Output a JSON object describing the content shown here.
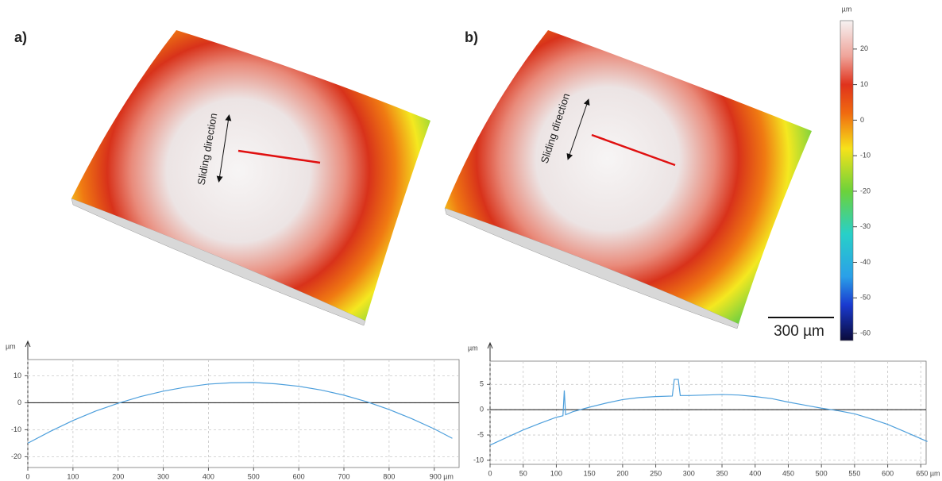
{
  "panels": [
    {
      "label": "a)",
      "annotation": "Sliding direction"
    },
    {
      "label": "b)",
      "annotation": "Sliding direction"
    }
  ],
  "colorbar": {
    "unit": "µm",
    "lim": [
      -62,
      28
    ],
    "ticks": [
      20,
      10,
      0,
      -10,
      -20,
      -30,
      -40,
      -50,
      -60
    ],
    "stops": [
      {
        "value": 28,
        "color": "#f6f2f2"
      },
      {
        "value": 18,
        "color": "#efa49a"
      },
      {
        "value": 10,
        "color": "#e0321c"
      },
      {
        "value": 2,
        "color": "#f06a10"
      },
      {
        "value": -8,
        "color": "#f6e21a"
      },
      {
        "value": -20,
        "color": "#6cd23a"
      },
      {
        "value": -32,
        "color": "#28d0c8"
      },
      {
        "value": -44,
        "color": "#2aa0e8"
      },
      {
        "value": -52,
        "color": "#1a3ad0"
      },
      {
        "value": -62,
        "color": "#0a0a3a"
      }
    ]
  },
  "scale_bar": "300 µm",
  "chart_data": [
    {
      "type": "line",
      "y_label": "µm",
      "zero_line": true,
      "grid": true,
      "x": [
        0,
        50,
        100,
        150,
        200,
        250,
        300,
        350,
        400,
        450,
        500,
        550,
        600,
        650,
        700,
        750,
        800,
        850,
        900,
        940
      ],
      "series": [
        {
          "color": "#4d9fdc",
          "values": [
            -15.0,
            -10.6,
            -6.6,
            -3.1,
            -0.2,
            2.3,
            4.3,
            5.8,
            6.9,
            7.4,
            7.5,
            7.0,
            6.1,
            4.7,
            2.8,
            0.4,
            -2.5,
            -5.9,
            -9.7,
            -13.2
          ]
        }
      ],
      "xlim": [
        0,
        955
      ],
      "xticks": [
        0,
        100,
        200,
        300,
        400,
        500,
        600,
        700,
        800,
        {
          "value": 900,
          "label": "900 µm"
        }
      ],
      "ylim": [
        -24,
        16
      ],
      "yticks": [
        -20,
        -10,
        0,
        10
      ]
    },
    {
      "type": "line",
      "y_label": "µm",
      "zero_line": true,
      "grid": true,
      "x": [
        0,
        25,
        50,
        75,
        100,
        110,
        112,
        114,
        125,
        150,
        175,
        200,
        225,
        250,
        275,
        278,
        284,
        287,
        300,
        325,
        350,
        375,
        400,
        425,
        450,
        475,
        500,
        525,
        550,
        575,
        600,
        625,
        660
      ],
      "series": [
        {
          "color": "#4d9fdc",
          "values": [
            -7,
            -5.5,
            -4,
            -2.7,
            -1.5,
            -1.2,
            3.8,
            -1,
            -0.4,
            0.5,
            1.3,
            2,
            2.4,
            2.6,
            2.7,
            6,
            6,
            2.8,
            2.8,
            2.9,
            3.0,
            2.9,
            2.6,
            2.2,
            1.5,
            0.9,
            0.3,
            -0.2,
            -0.8,
            -1.8,
            -2.9,
            -4.3,
            -6.3
          ]
        }
      ],
      "xlim": [
        0,
        658
      ],
      "xticks": [
        0,
        50,
        100,
        150,
        200,
        250,
        300,
        350,
        400,
        450,
        500,
        550,
        600,
        {
          "value": 650,
          "label": "650 µm"
        }
      ],
      "ylim": [
        -10.8,
        9.6
      ],
      "yticks": [
        -10,
        -5,
        0,
        5
      ]
    }
  ]
}
